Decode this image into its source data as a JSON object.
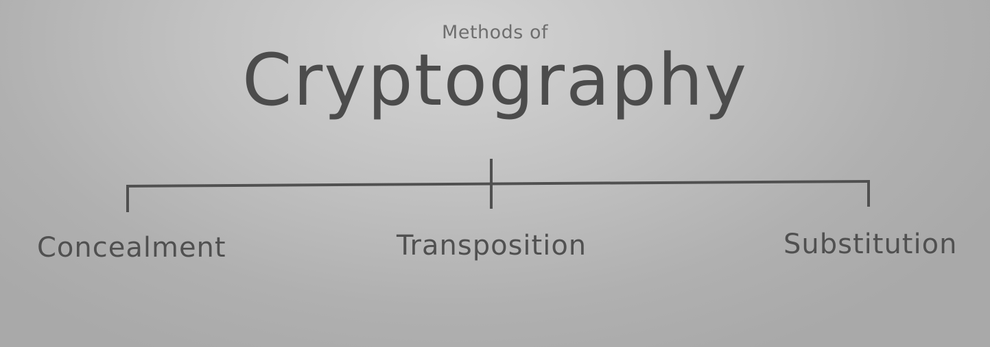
{
  "diagram": {
    "subtitle": "Methods of",
    "title": "Cryptography",
    "branches": [
      {
        "label": "Concealment"
      },
      {
        "label": "Transposition"
      },
      {
        "label": "Substitution"
      }
    ],
    "colors": {
      "line": "#505050",
      "text": "#4c4c4c",
      "subtitle": "#6e6e6e"
    }
  }
}
